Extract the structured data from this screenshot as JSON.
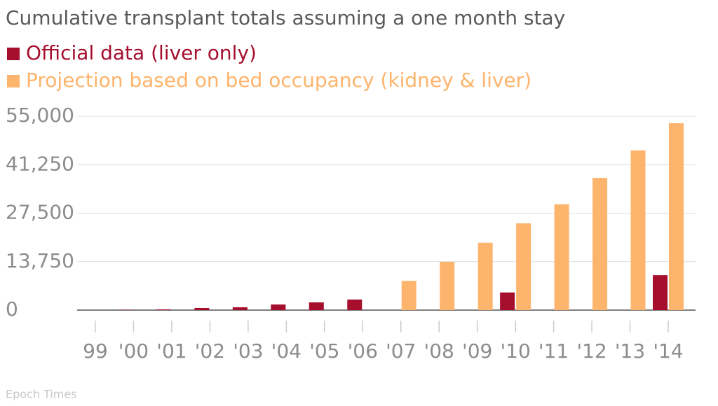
{
  "chart_data": {
    "type": "bar",
    "title": "Cumulative transplant totals assuming a one month stay",
    "source": "Epoch Times",
    "categories": [
      "99",
      "'00",
      "'01",
      "'02",
      "'03",
      "'04",
      "'05",
      "'06",
      "'07",
      "'08",
      "'09",
      "'10",
      "'11",
      "'12",
      "'13",
      "'14"
    ],
    "series": [
      {
        "name": "Official data (liver only)",
        "color": "#a50f2d",
        "values": [
          null,
          100,
          200,
          600,
          800,
          1600,
          2200,
          3000,
          null,
          null,
          null,
          5000,
          null,
          null,
          null,
          9900
        ]
      },
      {
        "name": "Projection based on bed occupancy (kidney & liver)",
        "color": "#fdb46c",
        "values": [
          null,
          null,
          null,
          null,
          null,
          null,
          null,
          null,
          8300,
          13700,
          19100,
          24600,
          30000,
          37500,
          45300,
          53000
        ]
      }
    ],
    "ylim": [
      0,
      55000
    ],
    "yticks": [
      0,
      {
        "value": 13750,
        "label": "13,750"
      },
      {
        "value": 27500,
        "label": "27,500"
      },
      {
        "value": 41250,
        "label": "41,250"
      },
      {
        "value": 55000,
        "label": "55,000"
      }
    ],
    "grid": true
  }
}
